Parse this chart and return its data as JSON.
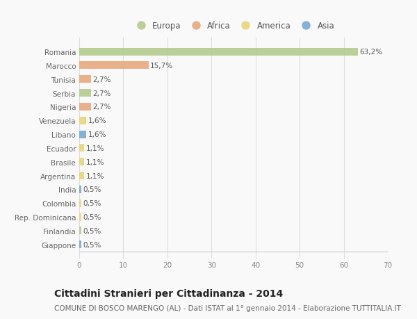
{
  "countries": [
    "Romania",
    "Marocco",
    "Tunisia",
    "Serbia",
    "Nigeria",
    "Venezuela",
    "Libano",
    "Ecuador",
    "Brasile",
    "Argentina",
    "India",
    "Colombia",
    "Rep. Dominicana",
    "Finlandia",
    "Giappone"
  ],
  "values": [
    63.2,
    15.7,
    2.7,
    2.7,
    2.7,
    1.6,
    1.6,
    1.1,
    1.1,
    1.1,
    0.5,
    0.5,
    0.5,
    0.5,
    0.5
  ],
  "labels": [
    "63,2%",
    "15,7%",
    "2,7%",
    "2,7%",
    "2,7%",
    "1,6%",
    "1,6%",
    "1,1%",
    "1,1%",
    "1,1%",
    "0,5%",
    "0,5%",
    "0,5%",
    "0,5%",
    "0,5%"
  ],
  "continents": [
    "Europa",
    "Africa",
    "Africa",
    "Europa",
    "Africa",
    "America",
    "Asia",
    "America",
    "America",
    "America",
    "Asia",
    "America",
    "America",
    "Europa",
    "Asia"
  ],
  "continent_colors": {
    "Europa": "#b5cc8e",
    "Africa": "#e8aa7e",
    "America": "#e8d87a",
    "Asia": "#7aaad4"
  },
  "legend_order": [
    "Europa",
    "Africa",
    "America",
    "Asia"
  ],
  "xlim": [
    0,
    70
  ],
  "xticks": [
    0,
    10,
    20,
    30,
    40,
    50,
    60,
    70
  ],
  "title": "Cittadini Stranieri per Cittadinanza - 2014",
  "subtitle": "COMUNE DI BOSCO MARENGO (AL) - Dati ISTAT al 1° gennaio 2014 - Elaborazione TUTTITALIA.IT",
  "bg_color": "#f9f9f9",
  "bar_height": 0.55,
  "title_fontsize": 10,
  "subtitle_fontsize": 7.5,
  "label_fontsize": 7.5,
  "tick_fontsize": 7.5,
  "legend_fontsize": 8.5,
  "ytick_fontsize": 7.5
}
